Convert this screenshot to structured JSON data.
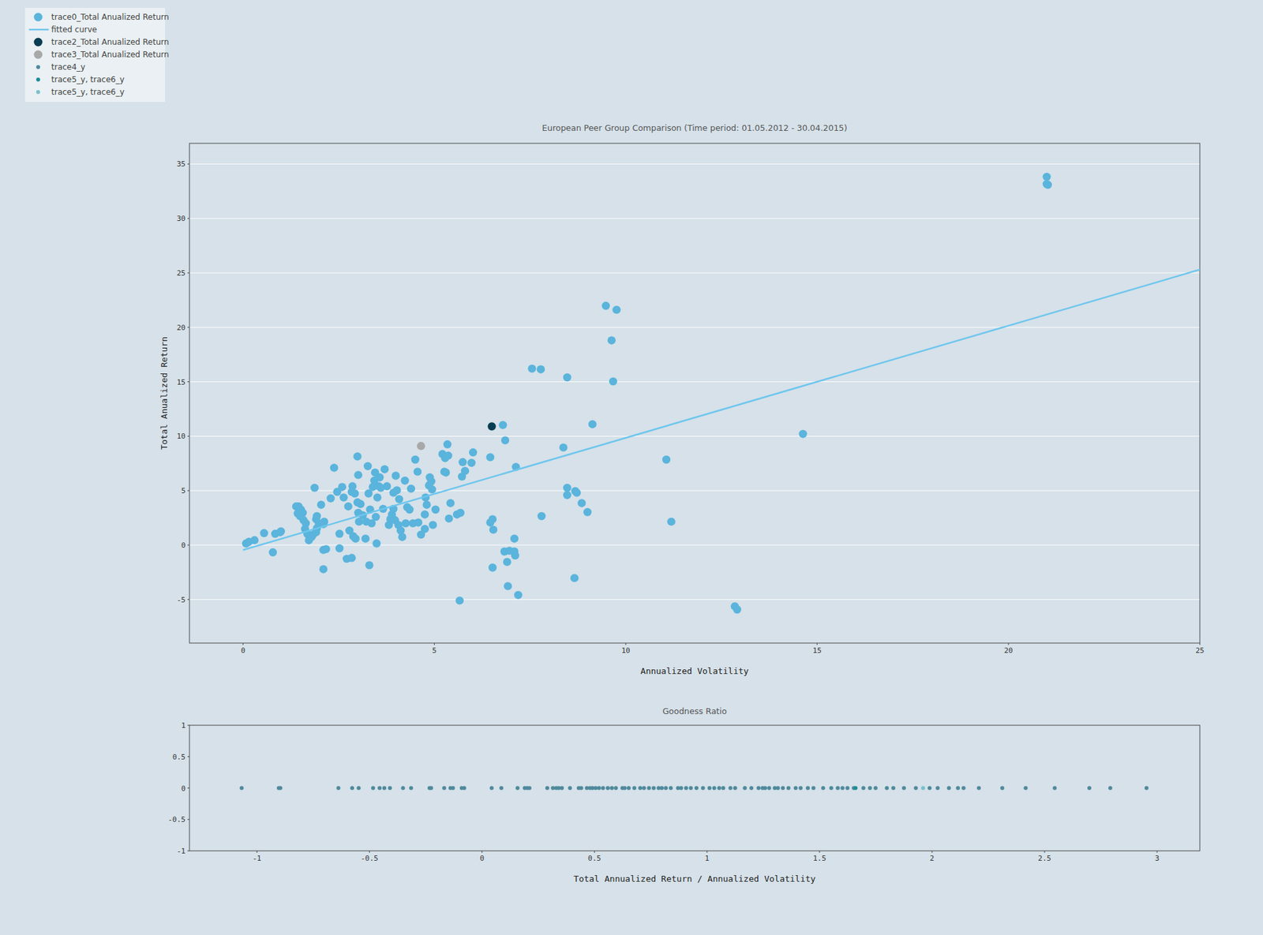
{
  "chart_data": [
    {
      "type": "scatter",
      "title": "European Peer Group Comparison (Time period: 01.05.2012 - 30.04.2015)",
      "x_label": "Annualized Volatility",
      "y_label": "Total Anualized Return",
      "xlim": [
        -1.4,
        25
      ],
      "ylim": [
        -9,
        36.9
      ],
      "xticks": [
        0,
        5,
        10,
        15,
        20,
        25
      ],
      "yticks": [
        -5,
        0,
        5,
        10,
        15,
        20,
        25,
        30,
        35
      ],
      "grid": true,
      "legend": "top-left",
      "series": [
        {
          "name": "trace0_Total Anualized Return",
          "color": "#5ab4dc",
          "marker": "circle",
          "x": [
            0.08,
            0.15,
            0.3,
            0.55,
            0.78,
            0.84,
            0.97,
            0.99,
            1.39,
            1.45,
            1.51,
            1.43,
            1.49,
            1.56,
            1.58,
            1.64,
            1.62,
            1.68,
            1.72,
            1.79,
            1.83,
            1.91,
            1.93,
            1.91,
            1.93,
            1.98,
            2.04,
            1.87,
            2.1,
            2.17,
            2.1,
            2.12,
            2.1,
            2.29,
            2.38,
            2.46,
            2.52,
            2.52,
            2.59,
            2.63,
            2.71,
            2.75,
            2.78,
            2.84,
            2.84,
            2.86,
            2.88,
            2.92,
            2.94,
            2.99,
            2.99,
            3.01,
            3.01,
            3.03,
            3.07,
            3.13,
            3.2,
            3.22,
            3.26,
            3.28,
            3.3,
            3.32,
            3.36,
            3.39,
            3.43,
            3.45,
            3.47,
            3.49,
            3.51,
            3.55,
            3.57,
            3.6,
            3.66,
            3.7,
            3.76,
            3.81,
            3.85,
            3.89,
            3.93,
            3.93,
            3.97,
            3.99,
            4.02,
            4.06,
            4.08,
            4.12,
            4.16,
            4.23,
            4.25,
            4.29,
            4.35,
            4.39,
            4.44,
            4.5,
            4.56,
            4.58,
            4.65,
            4.75,
            4.75,
            4.77,
            4.8,
            4.86,
            4.88,
            4.92,
            4.94,
            4.96,
            5.03,
            5.21,
            5.26,
            5.28,
            5.3,
            5.34,
            5.36,
            5.38,
            5.42,
            5.59,
            5.68,
            5.66,
            5.72,
            5.74,
            5.8,
            5.97,
            6.01,
            6.46,
            6.46,
            6.52,
            6.54,
            6.52,
            6.79,
            6.83,
            6.85,
            6.9,
            6.92,
            6.96,
            7.09,
            7.11,
            7.09,
            7.13,
            7.19,
            7.55,
            7.78,
            7.8,
            8.37,
            8.47,
            8.47,
            8.47,
            8.66,
            8.68,
            8.72,
            8.85,
            9.0,
            9.13,
            9.48,
            9.63,
            9.67,
            9.76,
            11.06,
            11.19,
            12.85,
            12.91,
            14.63,
            21.0,
            21.03,
            21.0
          ],
          "values": [
            0.15,
            0.3,
            0.45,
            1.1,
            -0.67,
            1.04,
            1.18,
            1.26,
            3.55,
            3.55,
            3.26,
            2.9,
            2.66,
            2.96,
            2.29,
            2.0,
            1.48,
            1.04,
            0.44,
            0.74,
            0.96,
            1.18,
            1.55,
            2.37,
            2.66,
            2.0,
            3.7,
            5.26,
            -0.44,
            -0.37,
            -2.22,
            2.15,
            1.92,
            4.29,
            7.1,
            4.89,
            1.04,
            -0.3,
            5.33,
            4.37,
            -1.26,
            3.55,
            1.33,
            -1.18,
            4.89,
            5.4,
            0.81,
            4.74,
            0.59,
            8.14,
            3.92,
            6.44,
            2.96,
            2.15,
            3.77,
            2.74,
            0.59,
            2.15,
            7.25,
            4.74,
            -1.85,
            3.26,
            2.0,
            5.33,
            5.92,
            6.66,
            2.59,
            0.15,
            4.37,
            5.4,
            6.22,
            5.26,
            3.33,
            6.96,
            5.4,
            1.85,
            2.37,
            2.81,
            4.81,
            3.33,
            2.29,
            6.37,
            5.03,
            1.85,
            4.22,
            1.33,
            0.74,
            5.92,
            2.0,
            3.48,
            3.26,
            5.18,
            2.0,
            7.85,
            6.74,
            2.07,
            0.96,
            2.81,
            1.48,
            4.37,
            3.7,
            5.48,
            6.22,
            5.85,
            5.11,
            1.85,
            3.26,
            8.36,
            6.74,
            7.99,
            6.66,
            9.25,
            8.22,
            2.44,
            3.85,
            2.81,
            2.96,
            -5.1,
            6.29,
            7.62,
            6.81,
            7.55,
            8.51,
            8.07,
            2.07,
            2.37,
            1.41,
            -2.07,
            11.03,
            -0.59,
            9.62,
            -1.55,
            -3.77,
            -0.52,
            -0.59,
            -0.96,
            0.59,
            7.18,
            -4.59,
            16.21,
            16.14,
            2.66,
            8.96,
            15.4,
            5.26,
            4.59,
            -3.03,
            4.96,
            4.81,
            3.85,
            3.03,
            11.1,
            21.98,
            18.8,
            15.03,
            21.61,
            7.85,
            2.15,
            -5.63,
            -5.92,
            10.21,
            33.83,
            33.09,
            33.16
          ]
        },
        {
          "name": "fitted curve",
          "type": "line",
          "color": "#6ec6ee",
          "line_style": "solid",
          "x": [
            0,
            25
          ],
          "values": [
            -0.45,
            25.3
          ]
        },
        {
          "name": "trace2_Total Anualized Return",
          "color": "#083d52",
          "marker": "circle",
          "x": [
            6.5
          ],
          "values": [
            10.9
          ]
        },
        {
          "name": "trace3_Total Anualized Return",
          "color": "#a8a8a8",
          "marker": "circle",
          "x": [
            4.65
          ],
          "values": [
            9.1
          ]
        }
      ]
    },
    {
      "type": "scatter",
      "title": "Goodness Ratio",
      "x_label": "Total Annualized Return / Annualized Volatility",
      "xlim": [
        -1.3,
        3.19
      ],
      "ylim": [
        -1,
        1
      ],
      "xticks": [
        -1,
        -0.5,
        0,
        0.5,
        1,
        1.5,
        2,
        2.5,
        3
      ],
      "yticks": [
        -1,
        -0.5,
        0,
        0.5,
        1
      ],
      "grid": false,
      "series": [
        {
          "name": "trace4_y",
          "color": "#4f8a9c",
          "marker": "circle",
          "x": [
            -1.068,
            -0.903,
            -0.896,
            -0.638,
            -0.577,
            -0.548,
            -0.484,
            -0.455,
            -0.434,
            -0.409,
            -0.351,
            -0.315,
            -0.233,
            -0.226,
            -0.168,
            -0.14,
            -0.129,
            -0.09,
            -0.079,
            0.043,
            0.086,
            0.158,
            0.19,
            0.201,
            0.211,
            0.29,
            0.315,
            0.33,
            0.341,
            0.355,
            0.391,
            0.43,
            0.441,
            0.466,
            0.48,
            0.491,
            0.505,
            0.52,
            0.538,
            0.559,
            0.577,
            0.595,
            0.624,
            0.634,
            0.652,
            0.677,
            0.703,
            0.72,
            0.742,
            0.763,
            0.785,
            0.799,
            0.817,
            0.839,
            0.871,
            0.885,
            0.907,
            0.928,
            0.953,
            0.982,
            1.011,
            1.032,
            1.054,
            1.072,
            1.104,
            1.125,
            1.168,
            1.197,
            1.229,
            1.247,
            1.258,
            1.276,
            1.301,
            1.315,
            1.337,
            1.362,
            1.394,
            1.416,
            1.448,
            1.473,
            1.516,
            1.552,
            1.581,
            1.602,
            1.624,
            1.652,
            1.695,
            1.724,
            1.749,
            1.799,
            1.828,
            1.875,
            1.928,
            1.989,
            2.025,
            2.075,
            2.115,
            2.14,
            2.208,
            2.312,
            2.416,
            2.545,
            2.699,
            2.792,
            2.953
          ],
          "values": [
            0,
            0,
            0,
            0,
            0,
            0,
            0,
            0,
            0,
            0,
            0,
            0,
            0,
            0,
            0,
            0,
            0,
            0,
            0,
            0,
            0,
            0,
            0,
            0,
            0,
            0,
            0,
            0,
            0,
            0,
            0,
            0,
            0,
            0,
            0,
            0,
            0,
            0,
            0,
            0,
            0,
            0,
            0,
            0,
            0,
            0,
            0,
            0,
            0,
            0,
            0,
            0,
            0,
            0,
            0,
            0,
            0,
            0,
            0,
            0,
            0,
            0,
            0,
            0,
            0,
            0,
            0,
            0,
            0,
            0,
            0,
            0,
            0,
            0,
            0,
            0,
            0,
            0,
            0,
            0,
            0,
            0,
            0,
            0,
            0,
            0,
            0,
            0,
            0,
            0,
            0,
            0,
            0,
            0,
            0,
            0,
            0,
            0,
            0,
            0,
            0,
            0,
            0,
            0,
            0
          ]
        },
        {
          "name": "trace5_y, trace6_y",
          "color": "#1b8c98",
          "marker": "circle",
          "x": [
            1.66
          ],
          "values": [
            0
          ]
        },
        {
          "name": "trace5_y, trace6_y",
          "color": "#79c0cb",
          "marker": "circle",
          "x": [
            1.96
          ],
          "values": [
            0
          ]
        }
      ]
    }
  ]
}
